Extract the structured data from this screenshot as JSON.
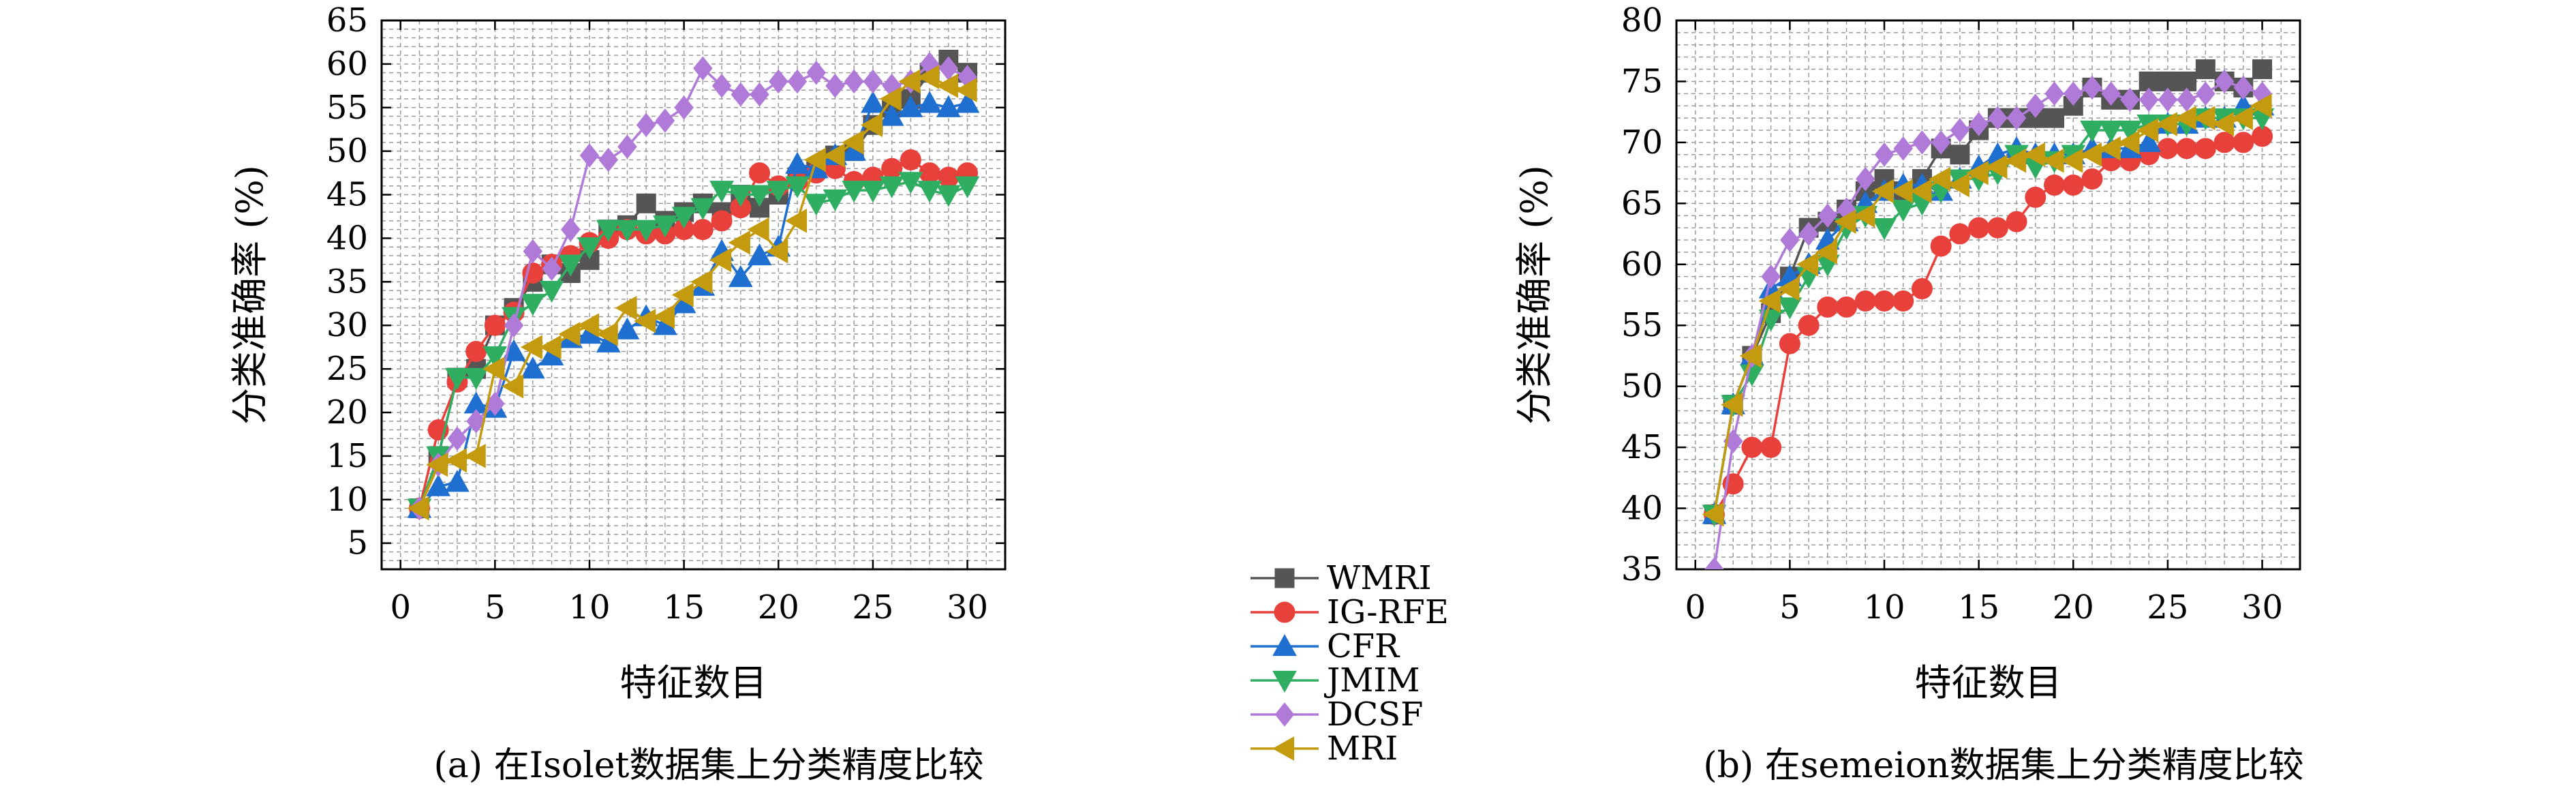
{
  "chart_data": [
    {
      "type": "line",
      "caption": "(a) 在Isolet数据集上分类精度比较",
      "xlabel": "特征数目",
      "ylabel": "分类准确率 (%)",
      "xlim": [
        -1,
        32
      ],
      "ylim": [
        2,
        65
      ],
      "xticks": [
        0,
        5,
        10,
        15,
        20,
        25,
        30
      ],
      "yticks": [
        5,
        10,
        15,
        20,
        25,
        30,
        35,
        40,
        45,
        50,
        55,
        60,
        65
      ],
      "grid": true,
      "x": [
        1,
        2,
        3,
        4,
        5,
        6,
        7,
        8,
        9,
        10,
        11,
        12,
        13,
        14,
        15,
        16,
        17,
        18,
        19,
        20,
        21,
        22,
        23,
        24,
        25,
        26,
        27,
        28,
        29,
        30
      ],
      "series": [
        {
          "name": "WMRI",
          "color": "#555555",
          "marker": "square",
          "values": [
            9,
            15,
            24,
            25,
            30,
            32,
            35,
            37,
            36,
            37.5,
            41,
            41.5,
            44,
            42,
            43,
            44,
            43,
            45,
            43.5,
            45,
            47,
            48,
            49.5,
            50,
            53,
            55,
            56,
            59,
            60.5,
            59
          ]
        },
        {
          "name": "IG-RFE",
          "color": "#e8413c",
          "marker": "circle",
          "values": [
            9,
            18,
            23.5,
            27,
            30,
            31.5,
            36,
            37,
            38,
            39.5,
            40,
            41,
            40.5,
            40.5,
            41,
            41,
            42,
            43.5,
            47.5,
            46,
            46.5,
            47.5,
            48,
            46.5,
            47,
            48,
            49,
            47.5,
            47,
            47.5
          ]
        },
        {
          "name": "CFR",
          "color": "#1f6fd1",
          "marker": "triangle-up",
          "values": [
            9,
            11.5,
            12,
            21,
            20.5,
            27,
            25,
            26.5,
            28.5,
            29,
            28,
            29.5,
            31,
            30,
            32.5,
            34.5,
            38.5,
            35.5,
            38,
            39,
            48.5,
            48,
            49.5,
            50,
            55.5,
            54,
            55,
            55.5,
            55,
            55.5
          ]
        },
        {
          "name": "JMIM",
          "color": "#2fae62",
          "marker": "triangle-down",
          "values": [
            9,
            15,
            24,
            24,
            26.5,
            31,
            32.5,
            34,
            37,
            39,
            41,
            41,
            41,
            41.5,
            42.5,
            43.5,
            45.5,
            45,
            45,
            45.5,
            46,
            44,
            44.5,
            45.5,
            45.5,
            46,
            46.5,
            45.5,
            45,
            46
          ]
        },
        {
          "name": "DCSF",
          "color": "#b07ad9",
          "marker": "diamond",
          "values": [
            9,
            14,
            17,
            19,
            21,
            30,
            38.5,
            36.5,
            41,
            49.5,
            49,
            50.5,
            53,
            53.5,
            55,
            59.5,
            57.5,
            56.5,
            56.5,
            58,
            58,
            59,
            57.5,
            58,
            58,
            57.5,
            58,
            60,
            59.5,
            58.5
          ]
        },
        {
          "name": "MRI",
          "color": "#c49a0e",
          "marker": "triangle-left",
          "values": [
            9,
            14,
            14.5,
            15,
            25,
            23,
            27.5,
            27.5,
            29,
            30,
            29,
            32,
            30.5,
            31,
            33.5,
            35,
            37.5,
            39.5,
            41,
            38.5,
            42,
            49,
            49.5,
            51,
            53,
            56,
            58,
            58.5,
            57.5,
            57
          ]
        }
      ]
    },
    {
      "type": "line",
      "caption": "(b) 在semeion数据集上分类精度比较",
      "xlabel": "特征数目",
      "ylabel": "分类准确率 (%)",
      "xlim": [
        -1,
        32
      ],
      "ylim": [
        35,
        80
      ],
      "xticks": [
        0,
        5,
        10,
        15,
        20,
        25,
        30
      ],
      "yticks": [
        35,
        40,
        45,
        50,
        55,
        60,
        65,
        70,
        75,
        80
      ],
      "grid": true,
      "x": [
        1,
        2,
        3,
        4,
        5,
        6,
        7,
        8,
        9,
        10,
        11,
        12,
        13,
        14,
        15,
        16,
        17,
        18,
        19,
        20,
        21,
        22,
        23,
        24,
        25,
        26,
        27,
        28,
        29,
        30
      ],
      "series": [
        {
          "name": "WMRI",
          "color": "#555555",
          "marker": "square",
          "values": [
            39.5,
            48.5,
            52.5,
            56,
            59,
            63,
            63.5,
            64.5,
            66,
            67,
            66,
            67,
            69.5,
            69,
            71,
            72,
            72,
            72,
            72,
            73,
            74.5,
            73.5,
            73.5,
            75,
            75,
            75,
            76,
            75,
            74.5,
            76
          ]
        },
        {
          "name": "IG-RFE",
          "color": "#e8413c",
          "marker": "circle",
          "values": [
            39.5,
            42,
            45,
            45,
            53.5,
            55,
            56.5,
            56.5,
            57,
            57,
            57,
            58,
            61.5,
            62.5,
            63,
            63,
            63.5,
            65.5,
            66.5,
            66.5,
            67,
            68.5,
            68.5,
            69,
            69.5,
            69.5,
            69.5,
            70,
            70,
            70.5
          ]
        },
        {
          "name": "CFR",
          "color": "#1f6fd1",
          "marker": "triangle-up",
          "values": [
            39.5,
            48.5,
            52.5,
            58,
            59,
            60,
            62,
            63.5,
            65,
            66,
            66.5,
            66.5,
            66,
            67,
            68,
            69,
            69.5,
            69,
            69,
            69,
            69.5,
            69.5,
            69.5,
            70,
            71.5,
            71.5,
            72,
            72,
            73,
            73
          ]
        },
        {
          "name": "JMIM",
          "color": "#2fae62",
          "marker": "triangle-down",
          "values": [
            39.5,
            48.5,
            51,
            55.5,
            56.5,
            59,
            60,
            63,
            64,
            63,
            64.5,
            65,
            66,
            67,
            67,
            67.5,
            69,
            68,
            68.5,
            69,
            71,
            71,
            71,
            71.5,
            71.5,
            71.5,
            72,
            72,
            72,
            72
          ]
        },
        {
          "name": "DCSF",
          "color": "#b07ad9",
          "marker": "diamond",
          "values": [
            35,
            45.5,
            52.5,
            59,
            62,
            62.5,
            64,
            64.5,
            67,
            69,
            69.5,
            70,
            70,
            71,
            71.5,
            72,
            72,
            73,
            74,
            74,
            74.5,
            74,
            73.5,
            73.5,
            73.5,
            73.5,
            74,
            75,
            74.5,
            74
          ]
        },
        {
          "name": "MRI",
          "color": "#c49a0e",
          "marker": "triangle-left",
          "values": [
            39.5,
            48.5,
            52.5,
            57,
            58,
            60,
            61,
            63.5,
            64,
            66,
            66,
            66,
            67,
            66.5,
            67.5,
            68,
            68.5,
            69,
            68.5,
            68.5,
            69,
            69.5,
            70,
            71,
            71.5,
            72,
            72,
            71.5,
            72,
            73
          ]
        }
      ]
    }
  ]
}
